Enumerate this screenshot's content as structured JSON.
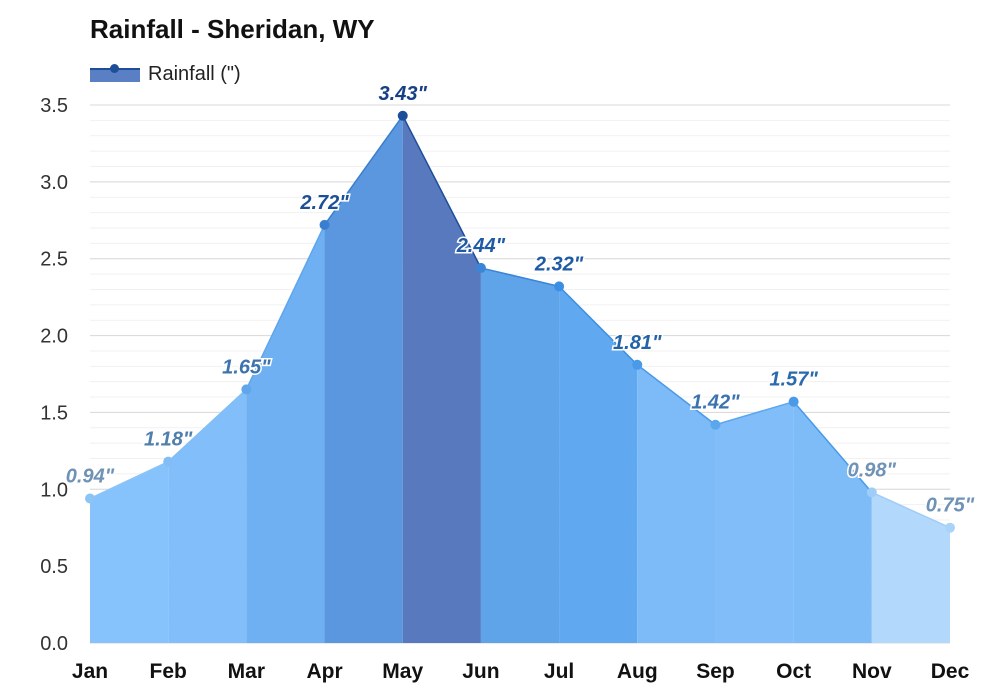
{
  "chart_data": {
    "type": "area",
    "title": "Rainfall - Sheridan, WY",
    "legend": {
      "label": "Rainfall (\")",
      "placement": "top-left"
    },
    "categories": [
      "Jan",
      "Feb",
      "Mar",
      "Apr",
      "May",
      "Jun",
      "Jul",
      "Aug",
      "Sep",
      "Oct",
      "Nov",
      "Dec"
    ],
    "series": [
      {
        "name": "Rainfall (\")",
        "values": [
          0.94,
          1.18,
          1.65,
          2.72,
          3.43,
          2.44,
          2.32,
          1.81,
          1.42,
          1.57,
          0.98,
          0.75
        ],
        "labels": [
          "0.94\"",
          "1.18\"",
          "1.65\"",
          "2.72\"",
          "3.43\"",
          "2.44\"",
          "2.32\"",
          "1.81\"",
          "1.42\"",
          "1.57\"",
          "0.98\"",
          "0.75\""
        ]
      }
    ],
    "y_ticks": [
      "0.0",
      "0.5",
      "1.0",
      "1.5",
      "2.0",
      "2.5",
      "3.0",
      "3.5"
    ],
    "ylim": [
      0,
      3.5
    ],
    "grid": true,
    "band_colors": [
      "#86c2fb",
      "#82befa",
      "#6eb0f1",
      "#5b97de",
      "#5879bd",
      "#5fa3e9",
      "#60a8ef",
      "#7cbaf8",
      "#80bdf9",
      "#7dbcf7",
      "#b2d8fc",
      "#bcdefd"
    ],
    "marker_colors": [
      "#8cc4f6",
      "#82bef5",
      "#5fa6ec",
      "#3a7fcf",
      "#1e4e9a",
      "#3b85d6",
      "#3b8fe2",
      "#4a9ae8",
      "#5ba7ee",
      "#4a9ae8",
      "#9fcdf7",
      "#a9d3f8"
    ],
    "label_colors": [
      "#6f92b7",
      "#4f7fae",
      "#3d73ae",
      "#1d4f96",
      "#163f86",
      "#1f5aa4",
      "#1f5aa4",
      "#2363a8",
      "#3b73b0",
      "#2b6aac",
      "#6f92b7",
      "#6f92b7"
    ]
  }
}
